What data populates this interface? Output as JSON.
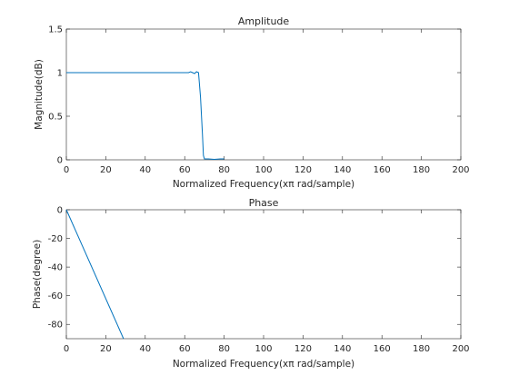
{
  "chart_data": [
    {
      "type": "line",
      "title": "Amplitude",
      "xlabel": "Normalized Frequency(xπ rad/sample)",
      "ylabel": "Magnitude(dB)",
      "xlim": [
        0,
        200
      ],
      "ylim": [
        0,
        1.5
      ],
      "xticks": [
        "0",
        "20",
        "40",
        "60",
        "80",
        "100",
        "120",
        "140",
        "160",
        "180",
        "200"
      ],
      "yticks": [
        "0",
        "0.5",
        "1",
        "1.5"
      ],
      "grid": false,
      "color": "#0072bd",
      "series": [
        {
          "x": [
            0,
            20,
            40,
            60,
            62,
            63,
            64,
            65,
            66,
            67,
            68,
            69,
            69.5,
            70,
            72,
            75,
            78,
            80
          ],
          "y": [
            1.0,
            1.0,
            1.0,
            1.0,
            1.0,
            1.01,
            1.0,
            0.99,
            1.01,
            1.0,
            0.72,
            0.3,
            0.05,
            0.01,
            0.01,
            0.005,
            0.01,
            0.01
          ]
        }
      ]
    },
    {
      "type": "line",
      "title": "Phase",
      "xlabel": "Normalized Frequency(xπ rad/sample)",
      "ylabel": "Phase(degree)",
      "xlim": [
        0,
        200
      ],
      "ylim": [
        -90,
        0
      ],
      "xticks": [
        "0",
        "20",
        "40",
        "60",
        "80",
        "100",
        "120",
        "140",
        "160",
        "180",
        "200"
      ],
      "yticks": [
        "-80",
        "-60",
        "-40",
        "-20",
        "0"
      ],
      "grid": false,
      "color": "#0072bd",
      "series": [
        {
          "x": [
            0,
            29
          ],
          "y": [
            0,
            -90
          ]
        }
      ]
    }
  ]
}
